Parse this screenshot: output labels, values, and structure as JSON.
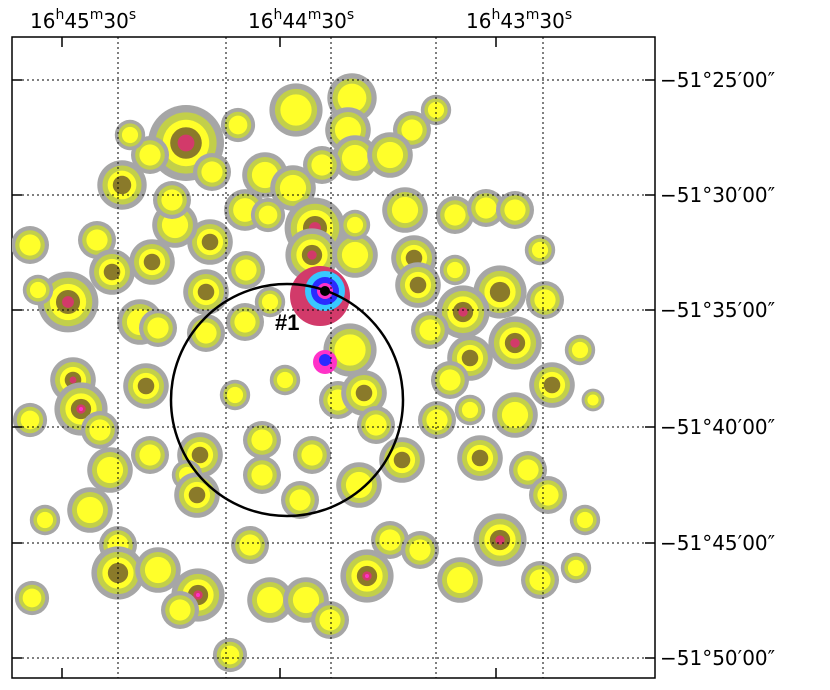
{
  "figure": {
    "colors": {
      "level1": "#a6a6a6",
      "level2": "#c2cf4a",
      "level3": "#ffff2a",
      "level4": "#8a7a2a",
      "level5": "#d23a6a",
      "level6": "#ff32c8",
      "level7": "#2a2aff",
      "level8": "#38c8ff",
      "circle": "#000000"
    },
    "ra_ticks": [
      {
        "h": "16",
        "m": "45",
        "s": "30"
      },
      {
        "h": "16",
        "m": "44",
        "s": "30"
      },
      {
        "h": "16",
        "m": "43",
        "s": "30"
      }
    ],
    "ra_units": {
      "h": "h",
      "m": "m",
      "s": "s"
    },
    "dec_ticks": [
      "−51°25′00″",
      "−51°30′00″",
      "−51°35′00″",
      "−51°40′00″",
      "−51°45′00″",
      "−51°50′00″"
    ],
    "region_label": "#1"
  }
}
